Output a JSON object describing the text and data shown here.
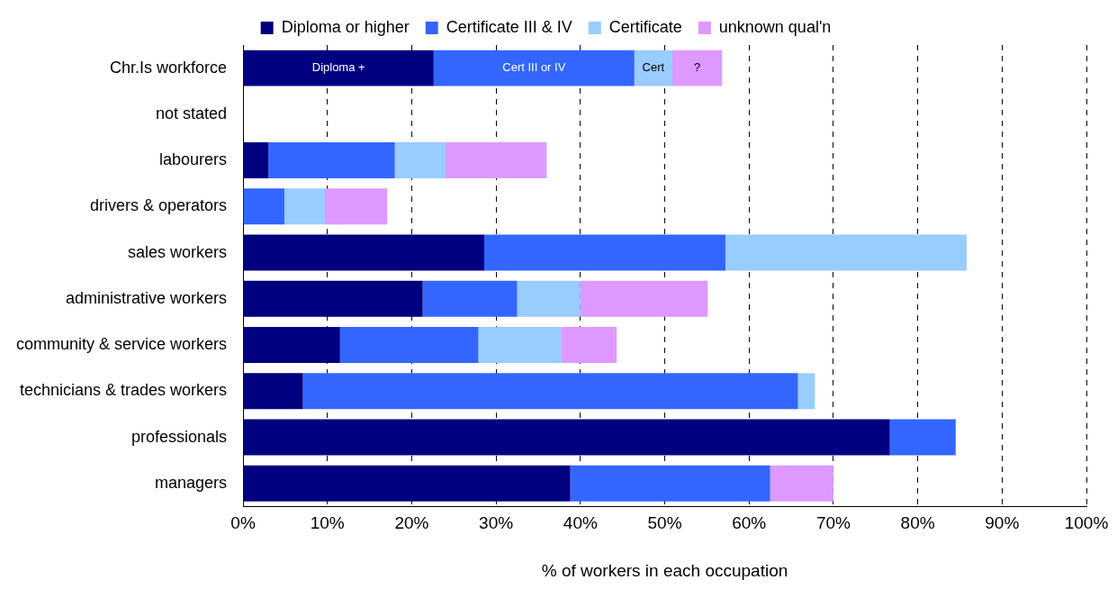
{
  "chart_data": {
    "type": "bar",
    "orientation": "horizontal",
    "stacked": true,
    "xlabel": "% of workers in each occupation",
    "categories": [
      "Chr.Is workforce",
      "not stated",
      "labourers",
      "drivers & operators",
      "sales workers",
      "administrative workers",
      "community & service workers",
      "technicians & trades workers",
      "professionals",
      "managers"
    ],
    "series": [
      {
        "name": "Diploma or higher",
        "color": "#000080",
        "values": [
          22.6,
          null,
          3.0,
          null,
          28.6,
          21.3,
          11.5,
          7.1,
          76.7,
          38.8
        ],
        "value_labels": [
          "Diploma +",
          null,
          null,
          null,
          null,
          null,
          null,
          null,
          null,
          null
        ]
      },
      {
        "name": "Certificate III & IV",
        "color": "#3366ff",
        "values": [
          23.8,
          null,
          15.0,
          4.9,
          28.6,
          11.2,
          16.4,
          58.7,
          7.8,
          23.7
        ],
        "value_labels": [
          "Cert III or IV",
          null,
          null,
          null,
          null,
          null,
          null,
          null,
          null,
          null
        ]
      },
      {
        "name": "Certificate",
        "color": "#99ccff",
        "values": [
          4.5,
          null,
          6.0,
          4.8,
          28.6,
          7.5,
          9.8,
          2.0,
          null,
          null
        ],
        "value_labels": [
          "Cert",
          null,
          null,
          null,
          null,
          null,
          null,
          null,
          null,
          null
        ]
      },
      {
        "name": "unknown qual'n",
        "color": "#dd99ff",
        "values": [
          5.9,
          null,
          12.0,
          7.4,
          null,
          15.1,
          6.6,
          null,
          null,
          7.5
        ],
        "value_labels": [
          "?",
          null,
          null,
          null,
          null,
          null,
          null,
          null,
          null,
          null
        ]
      }
    ],
    "xlim": [
      0,
      100
    ],
    "xticks": [
      {
        "value": 0,
        "label": "0%"
      },
      {
        "value": 10,
        "label": "10%"
      },
      {
        "value": 20,
        "label": "20%"
      },
      {
        "value": 30,
        "label": "30%"
      },
      {
        "value": 40,
        "label": "40%"
      },
      {
        "value": 50,
        "label": "50%"
      },
      {
        "value": 60,
        "label": "60%"
      },
      {
        "value": 70,
        "label": "70%"
      },
      {
        "value": 80,
        "label": "80%"
      },
      {
        "value": 90,
        "label": "90%"
      },
      {
        "value": 100,
        "label": "100%"
      }
    ],
    "grid": "x",
    "legend": "top"
  }
}
